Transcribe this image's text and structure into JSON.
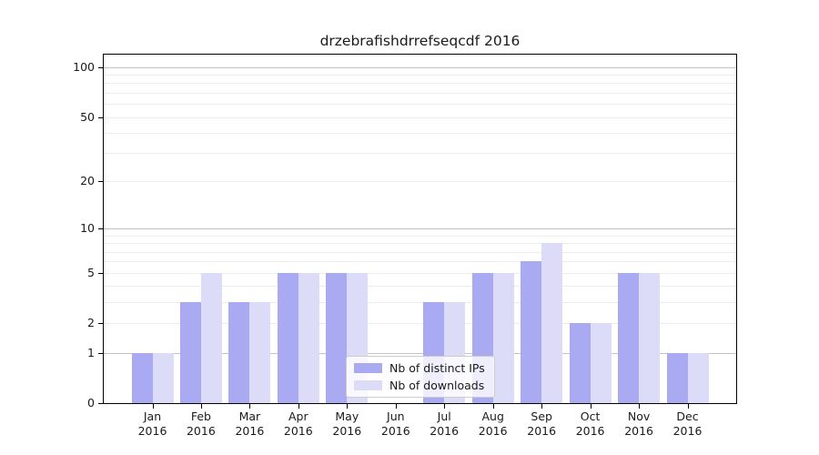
{
  "chart_data": {
    "type": "bar",
    "title": "drzebrafishdrrefseqcdf 2016",
    "scale": "log1p",
    "categories": [
      "Jan 2016",
      "Feb 2016",
      "Mar 2016",
      "Apr 2016",
      "May 2016",
      "Jun 2016",
      "Jul 2016",
      "Aug 2016",
      "Sep 2016",
      "Oct 2016",
      "Nov 2016",
      "Dec 2016"
    ],
    "series": [
      {
        "name": "Nb of distinct IPs",
        "color": "#aaaaf2",
        "values": [
          1,
          3,
          3,
          5,
          5,
          0,
          3,
          5,
          6,
          2,
          5,
          1
        ]
      },
      {
        "name": "Nb of downloads",
        "color": "#dcdcf8",
        "values": [
          1,
          5,
          3,
          5,
          5,
          0,
          3,
          5,
          8,
          2,
          5,
          1
        ]
      }
    ],
    "yticks": [
      0,
      1,
      2,
      5,
      10,
      20,
      50,
      100
    ],
    "ylim": [
      0,
      118
    ],
    "xlabel": "",
    "ylabel": "",
    "grid": true,
    "legend_position": "lower-center",
    "colors": {
      "grid_major": "#c3c3c3",
      "grid_minor": "#ececec",
      "axis": "#000000",
      "text": "#1a1a1a",
      "legend_border": "#cccccc"
    }
  }
}
